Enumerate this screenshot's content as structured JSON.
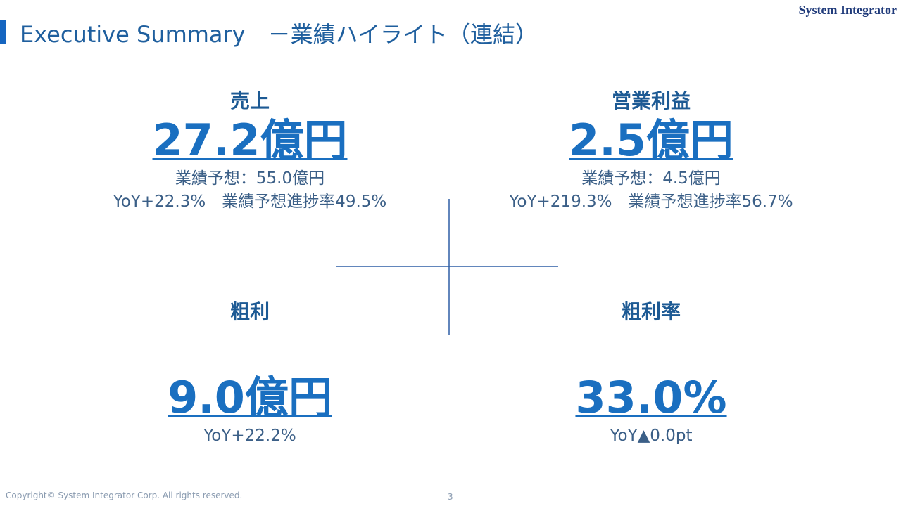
{
  "header": {
    "title": "Executive Summary　－業績ハイライト（連結）",
    "brand": "System Integrator"
  },
  "quadrants": [
    {
      "label": "売上",
      "value": "27.2億円",
      "lines": [
        "業績予想：55.0億円",
        "YoY+22.3%　業績予想進捗率49.5%"
      ]
    },
    {
      "label": "営業利益",
      "value": "2.5億円",
      "lines": [
        "業績予想：4.5億円",
        "YoY+219.3%　業績予想進捗率56.7%"
      ]
    },
    {
      "label": "粗利",
      "value": "9.0億円",
      "lines": [
        "YoY+22.2%"
      ]
    },
    {
      "label": "粗利率",
      "value": "33.0%",
      "lines": [
        "YoY▲0.0pt"
      ]
    }
  ],
  "footer": {
    "copyright": "Copyright© System Integrator Corp. All rights reserved.",
    "page": "3"
  }
}
